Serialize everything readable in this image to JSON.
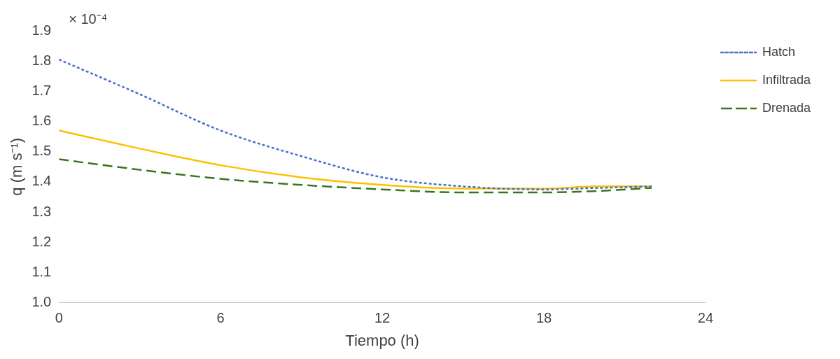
{
  "chart_data": {
    "type": "line",
    "xlabel": "Tiempo (h)",
    "ylabel": "q (m s⁻¹)",
    "annotations": [
      "× 10⁻⁴"
    ],
    "x": [
      0,
      3,
      6,
      9,
      12,
      15,
      18,
      20,
      22
    ],
    "series": [
      {
        "name": "Hatch",
        "color": "#4472c4",
        "line_style": "dotted",
        "values": [
          1.805,
          1.69,
          1.57,
          1.485,
          1.415,
          1.385,
          1.375,
          1.38,
          1.385
        ]
      },
      {
        "name": "Infiltrada",
        "color": "#ffc000",
        "line_style": "solid",
        "values": [
          1.57,
          1.51,
          1.455,
          1.415,
          1.39,
          1.378,
          1.378,
          1.385,
          1.385
        ]
      },
      {
        "name": "Drenada",
        "color": "#38761d",
        "line_style": "dashed",
        "values": [
          1.475,
          1.44,
          1.41,
          1.39,
          1.375,
          1.365,
          1.365,
          1.37,
          1.38
        ]
      }
    ],
    "xlim": [
      0,
      24
    ],
    "xticks": [
      0,
      6,
      12,
      18,
      24
    ],
    "ylim": [
      1.0,
      1.9
    ],
    "yticks": [
      {
        "value": 1.0,
        "label": "1.0"
      },
      1.1,
      1.2,
      1.3,
      1.4,
      1.5,
      1.6,
      1.7,
      1.8,
      1.9
    ],
    "grid": false,
    "legend": "top right",
    "marker": "none"
  }
}
